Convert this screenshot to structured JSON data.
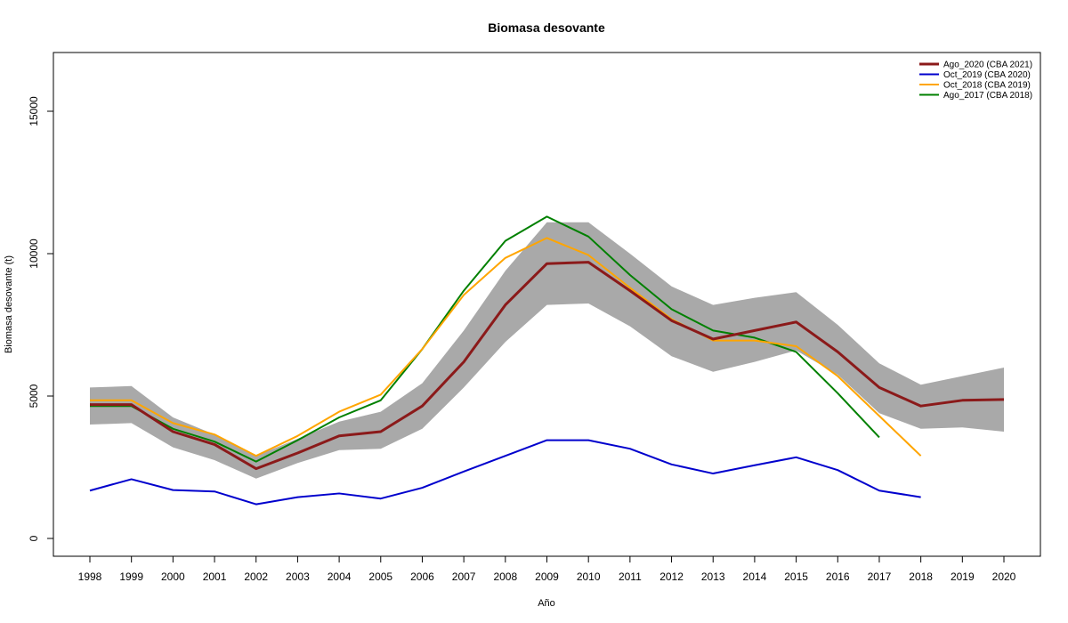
{
  "chart_data": {
    "type": "line",
    "title": "Biomasa desovante",
    "xlabel": "Año",
    "ylabel": "Biomasa desovante (t)",
    "x": [
      1998,
      1999,
      2000,
      2001,
      2002,
      2003,
      2004,
      2005,
      2006,
      2007,
      2008,
      2009,
      2010,
      2011,
      2012,
      2013,
      2014,
      2015,
      2016,
      2017,
      2018,
      2019,
      2020
    ],
    "xlim": [
      1998,
      2020
    ],
    "ylim": [
      0,
      17000
    ],
    "yticks": [
      0,
      5000,
      10000,
      15000
    ],
    "grid": false,
    "legend_position": "top-right",
    "band": {
      "color": "#a9a9a9",
      "lower": [
        4000,
        4050,
        3200,
        2750,
        2100,
        2650,
        3100,
        3150,
        3850,
        5300,
        6900,
        8200,
        8250,
        7450,
        6400,
        5850,
        6200,
        6600,
        5750,
        4400,
        3850,
        3900,
        3750
      ],
      "upper": [
        5300,
        5350,
        4250,
        3650,
        2900,
        3500,
        4100,
        4450,
        5450,
        7300,
        9400,
        11100,
        11100,
        10000,
        8850,
        8200,
        8450,
        8650,
        7500,
        6150,
        5400,
        5700,
        6000
      ]
    },
    "series": [
      {
        "name": "Ago_2020 (CBA 2021)",
        "color": "#8b1a1a",
        "width": 3,
        "values": [
          4700,
          4700,
          3750,
          3300,
          2450,
          3000,
          3600,
          3750,
          4650,
          6200,
          8200,
          9650,
          9700,
          8700,
          7650,
          7000,
          7300,
          7600,
          6550,
          5300,
          4650,
          4850,
          4880
        ]
      },
      {
        "name": "Oct_2019 (CBA 2020)",
        "color": "#0000cd",
        "width": 2,
        "values": [
          1680,
          2080,
          1700,
          1650,
          1200,
          1450,
          1580,
          1400,
          1780,
          2350,
          2900,
          3450,
          3450,
          3150,
          2600,
          2280,
          2570,
          2850,
          2400,
          1680,
          1450,
          null,
          null
        ]
      },
      {
        "name": "Oct_2018 (CBA 2019)",
        "color": "#ffa500",
        "width": 2,
        "values": [
          4850,
          4850,
          4050,
          3650,
          2900,
          3600,
          4450,
          5050,
          6650,
          8550,
          9850,
          10550,
          9950,
          8800,
          7700,
          6950,
          6950,
          6750,
          5700,
          4300,
          2900,
          null,
          null
        ]
      },
      {
        "name": "Ago_2017 (CBA 2018)",
        "color": "#008000",
        "width": 2,
        "values": [
          4650,
          4650,
          3850,
          3400,
          2700,
          3450,
          4250,
          4850,
          6650,
          8700,
          10450,
          11300,
          10600,
          9250,
          8050,
          7300,
          7050,
          6550,
          5100,
          3550,
          null,
          null,
          null
        ]
      }
    ]
  }
}
